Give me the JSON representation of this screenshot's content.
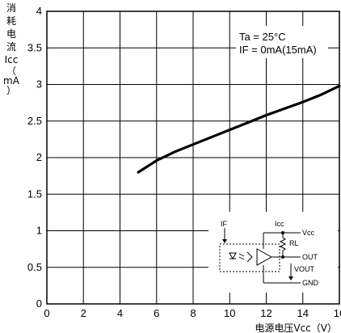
{
  "chart_data": {
    "type": "line",
    "x_ticks": [
      "0",
      "2",
      "4",
      "6",
      "8",
      "10",
      "12",
      "14",
      "16"
    ],
    "y_ticks": [
      "0",
      "0.5",
      "1",
      "1.5",
      "2",
      "2.5",
      "3",
      "3.5",
      "4"
    ],
    "xlim": [
      0,
      16
    ],
    "ylim": [
      0,
      4
    ],
    "xlabel": "电源电压Vcc（V）",
    "ylabel_chars": [
      "消",
      "耗",
      "电",
      "流",
      "Icc",
      "（",
      "mA",
      "）"
    ],
    "grid": true,
    "series": [
      {
        "x": [
          5,
          6,
          7,
          8,
          9,
          10,
          11,
          12,
          13,
          14,
          15,
          16
        ],
        "y": [
          1.8,
          1.96,
          2.08,
          2.18,
          2.28,
          2.38,
          2.48,
          2.58,
          2.67,
          2.76,
          2.86,
          2.98
        ]
      }
    ],
    "annotations": [
      "Ta = 25°C",
      "IF = 0mA(15mA)"
    ]
  },
  "circuit": {
    "labels": {
      "if": "IF",
      "icc": "Icc",
      "vcc": "Vcc",
      "rl": "RL",
      "out": "OUT",
      "vout": "VOUT",
      "gnd": "GND"
    }
  }
}
